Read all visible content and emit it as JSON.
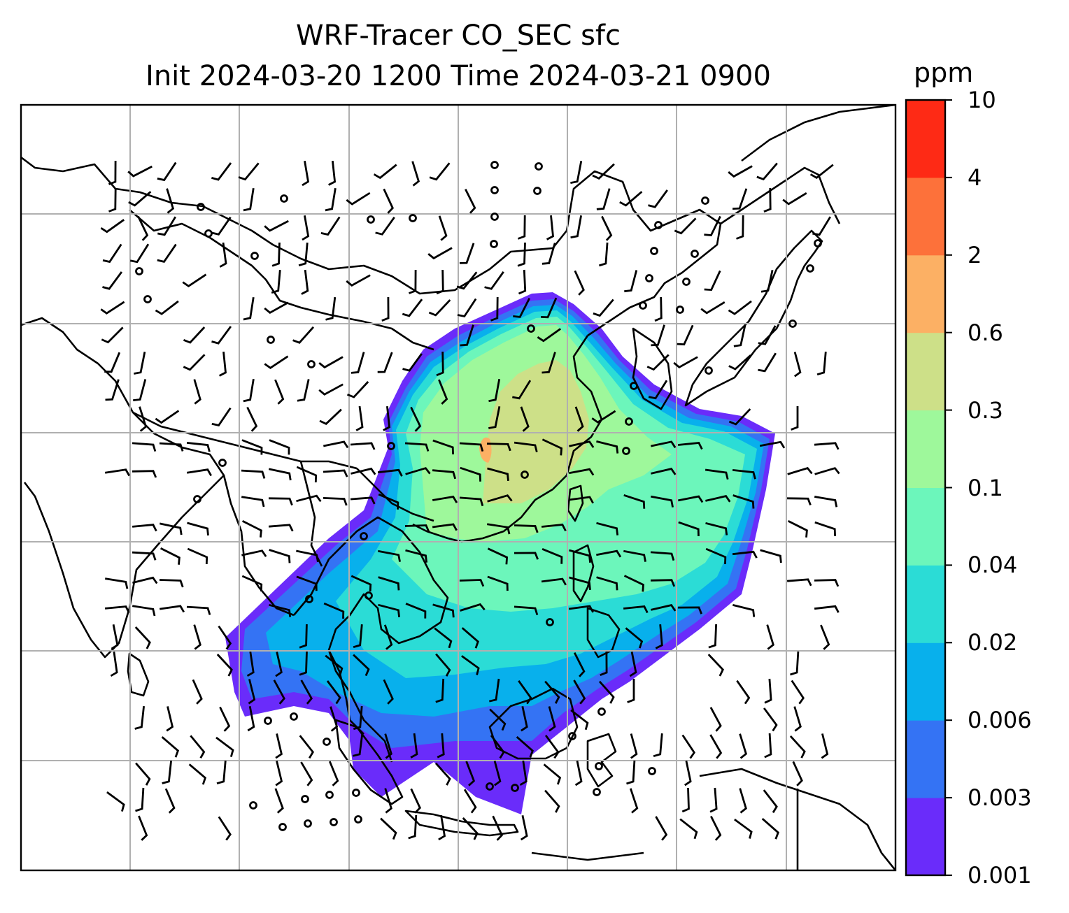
{
  "title": {
    "line1": "WRF-Tracer CO_SEC sfc",
    "line2": "Init 2024-03-20 1200 Time 2024-03-21 0900"
  },
  "colorbar": {
    "unit": "ppm",
    "levels": [
      "0.001",
      "0.003",
      "0.006",
      "0.02",
      "0.04",
      "0.1",
      "0.3",
      "0.6",
      "2",
      "4",
      "10"
    ],
    "colors": [
      "#6a2cfa",
      "#3473f4",
      "#08b0ec",
      "#2bdcd6",
      "#6cf6bb",
      "#9ef89b",
      "#cde088",
      "#fcb064",
      "#fd713a",
      "#fe2a15"
    ]
  },
  "map": {
    "region": "East and Southeast Asia",
    "gridlines": true,
    "coastlines": true,
    "wind_barbs": true,
    "calm_marker": "circle"
  }
}
